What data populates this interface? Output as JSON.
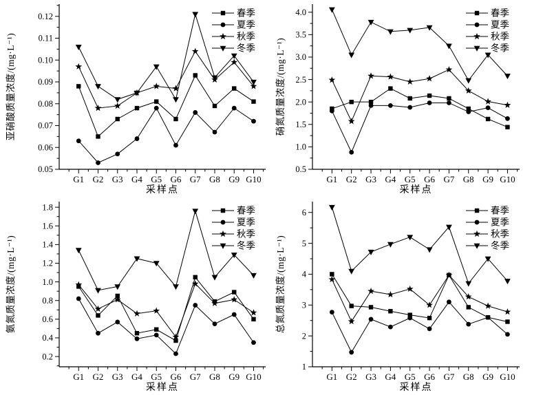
{
  "page": {
    "background": "#ffffff",
    "line_color": "#000000",
    "text_color": "#000000"
  },
  "legend": {
    "items": [
      {
        "label": "春季",
        "marker": "square"
      },
      {
        "label": "夏季",
        "marker": "circle"
      },
      {
        "label": "秋季",
        "marker": "star"
      },
      {
        "label": "冬季",
        "marker": "triangle-down"
      }
    ]
  },
  "chart_data": [
    {
      "id": "nitrite",
      "type": "line",
      "title": "",
      "xlabel": "采样点",
      "ylabel": "亚硝酸质量浓度/(mg·L⁻¹)",
      "categories": [
        "G1",
        "G2",
        "G3",
        "G4",
        "G5",
        "G6",
        "G7",
        "G8",
        "G9",
        "G10"
      ],
      "ylim": [
        0.05,
        0.1256
      ],
      "ytick_values": [
        0.05,
        0.06,
        0.07,
        0.08,
        0.09,
        0.1,
        0.11,
        0.12
      ],
      "ytick_labels": [
        "0.05",
        "0.06",
        "0.07",
        "0.08",
        "0.09",
        "0.10",
        "0.11",
        "0.12"
      ],
      "ytick_step": 0.01,
      "grid": false,
      "legend_position": "top-right",
      "series": [
        {
          "name": "春季",
          "marker": "square",
          "values": [
            0.088,
            0.065,
            0.073,
            0.078,
            0.081,
            0.073,
            0.093,
            0.079,
            0.087,
            0.081
          ]
        },
        {
          "name": "夏季",
          "marker": "circle",
          "values": [
            0.063,
            0.053,
            0.057,
            0.064,
            0.078,
            0.061,
            0.076,
            0.067,
            0.078,
            0.072
          ]
        },
        {
          "name": "秋季",
          "marker": "star",
          "values": [
            0.097,
            0.078,
            0.079,
            0.085,
            0.088,
            0.087,
            0.104,
            0.091,
            0.099,
            0.088
          ]
        },
        {
          "name": "冬季",
          "marker": "triangle-down",
          "values": [
            0.106,
            0.088,
            0.082,
            0.085,
            0.097,
            0.082,
            0.121,
            0.092,
            0.102,
            0.09
          ]
        }
      ]
    },
    {
      "id": "nitrate",
      "type": "line",
      "title": "",
      "xlabel": "采样点",
      "ylabel": "硝氮质量浓度/(mg·L⁻¹)",
      "categories": [
        "G1",
        "G2",
        "G3",
        "G4",
        "G5",
        "G6",
        "G7",
        "G8",
        "G9",
        "G10"
      ],
      "ylim": [
        0.5,
        4.18
      ],
      "ytick_values": [
        0.5,
        1.0,
        1.5,
        2.0,
        2.5,
        3.0,
        3.5,
        4.0
      ],
      "ytick_labels": [
        "0.5",
        "1.0",
        "1.5",
        "2.0",
        "2.5",
        "3.0",
        "3.5",
        "4.0"
      ],
      "ytick_step": 0.5,
      "grid": false,
      "legend_position": "top-right",
      "series": [
        {
          "name": "春季",
          "marker": "square",
          "values": [
            1.85,
            2.0,
            2.0,
            2.3,
            2.08,
            2.14,
            2.08,
            1.85,
            1.62,
            1.44
          ]
        },
        {
          "name": "夏季",
          "marker": "circle",
          "values": [
            1.8,
            0.88,
            1.92,
            1.92,
            1.88,
            1.98,
            1.98,
            1.78,
            1.87,
            1.63
          ]
        },
        {
          "name": "秋季",
          "marker": "star",
          "values": [
            2.49,
            1.57,
            2.58,
            2.56,
            2.45,
            2.52,
            2.72,
            2.25,
            2.01,
            1.93
          ]
        },
        {
          "name": "冬季",
          "marker": "triangle-down",
          "values": [
            4.06,
            3.05,
            3.78,
            3.57,
            3.6,
            3.66,
            3.25,
            2.48,
            3.05,
            2.58
          ]
        }
      ]
    },
    {
      "id": "ammonia",
      "type": "line",
      "title": "",
      "xlabel": "采样点",
      "ylabel": "氨氮质量浓度/(mg·L⁻¹)",
      "categories": [
        "G1",
        "G2",
        "G3",
        "G4",
        "G5",
        "G6",
        "G7",
        "G8",
        "G9",
        "G10"
      ],
      "ylim": [
        0.09,
        1.86
      ],
      "ytick_values": [
        0.2,
        0.4,
        0.6,
        0.8,
        1.0,
        1.2,
        1.4,
        1.6,
        1.8
      ],
      "ytick_labels": [
        "0.2",
        "0.4",
        "0.6",
        "0.8",
        "1.0",
        "1.2",
        "1.4",
        "1.6",
        "1.8"
      ],
      "ytick_step": 0.2,
      "grid": false,
      "legend_position": "top-right",
      "series": [
        {
          "name": "春季",
          "marker": "square",
          "values": [
            0.95,
            0.64,
            0.85,
            0.45,
            0.49,
            0.37,
            1.05,
            0.79,
            0.89,
            0.6
          ]
        },
        {
          "name": "夏季",
          "marker": "circle",
          "values": [
            0.82,
            0.45,
            0.57,
            0.39,
            0.43,
            0.23,
            0.75,
            0.55,
            0.65,
            0.35
          ]
        },
        {
          "name": "秋季",
          "marker": "star",
          "values": [
            0.97,
            0.71,
            0.81,
            0.66,
            0.69,
            0.41,
            0.98,
            0.77,
            0.81,
            0.67
          ]
        },
        {
          "name": "冬季",
          "marker": "triangle-down",
          "values": [
            1.34,
            0.91,
            0.95,
            1.25,
            1.2,
            0.95,
            1.76,
            1.05,
            1.29,
            1.07
          ]
        }
      ]
    },
    {
      "id": "total-nitrogen",
      "type": "line",
      "title": "",
      "xlabel": "采样点",
      "ylabel": "总氮质量浓度/(mg·L⁻¹)",
      "categories": [
        "G1",
        "G2",
        "G3",
        "G4",
        "G5",
        "G6",
        "G7",
        "G8",
        "G9",
        "G10"
      ],
      "ylim": [
        1.0,
        6.35
      ],
      "ytick_values": [
        1,
        2,
        3,
        4,
        5,
        6
      ],
      "ytick_labels": [
        "1",
        "2",
        "3",
        "4",
        "5",
        "6"
      ],
      "ytick_step": 1,
      "grid": false,
      "legend_position": "top-right",
      "series": [
        {
          "name": "春季",
          "marker": "square",
          "values": [
            4.0,
            2.97,
            2.93,
            2.8,
            2.68,
            2.58,
            3.97,
            2.93,
            2.6,
            2.46
          ]
        },
        {
          "name": "夏季",
          "marker": "circle",
          "values": [
            2.77,
            1.47,
            2.54,
            2.29,
            2.58,
            2.23,
            3.1,
            2.38,
            2.6,
            2.05
          ]
        },
        {
          "name": "秋季",
          "marker": "star",
          "values": [
            3.83,
            2.47,
            3.45,
            3.34,
            3.52,
            3.0,
            3.97,
            3.27,
            2.97,
            2.78
          ]
        },
        {
          "name": "冬季",
          "marker": "triangle-down",
          "values": [
            6.17,
            4.1,
            4.72,
            4.97,
            5.2,
            4.8,
            5.53,
            3.7,
            4.5,
            3.78
          ]
        }
      ]
    }
  ]
}
